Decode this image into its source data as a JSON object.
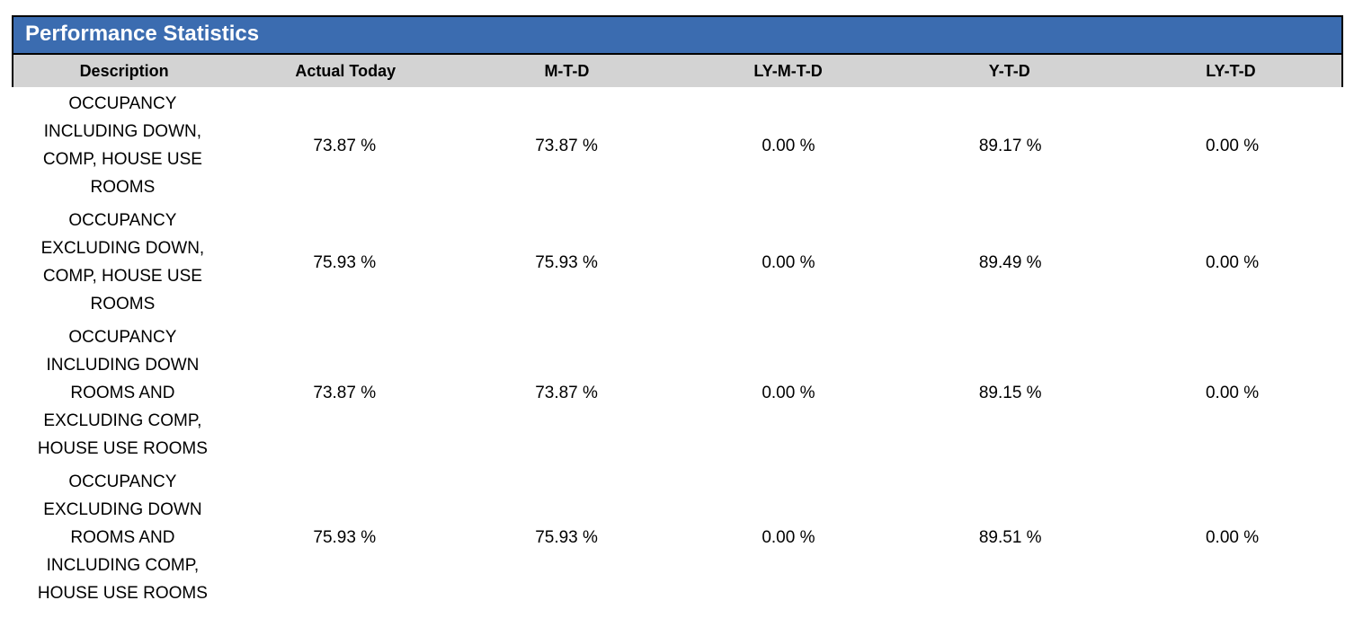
{
  "report": {
    "title": "Performance Statistics",
    "colors": {
      "title_bar_bg": "#3B6CB0",
      "title_text": "#FFFFFF",
      "column_header_bg": "#D3D3D3",
      "border": "#000000",
      "body_text": "#000000",
      "page_bg": "#FFFFFF"
    },
    "table": {
      "headers": [
        "Description",
        "Actual Today",
        "M-T-D",
        "LY-M-T-D",
        "Y-T-D",
        "LY-T-D"
      ],
      "rows": [
        {
          "description": "OCCUPANCY\nINCLUDING DOWN,\nCOMP, HOUSE USE\nROOMS",
          "actual_today": "73.87 %",
          "mtd": "73.87 %",
          "ly_mtd": "0.00 %",
          "ytd": "89.17 %",
          "ly_td": "0.00 %"
        },
        {
          "description": "OCCUPANCY\nEXCLUDING DOWN,\nCOMP, HOUSE USE\nROOMS",
          "actual_today": "75.93 %",
          "mtd": "75.93 %",
          "ly_mtd": "0.00 %",
          "ytd": "89.49 %",
          "ly_td": "0.00 %"
        },
        {
          "description": "OCCUPANCY\nINCLUDING DOWN\nROOMS AND\nEXCLUDING COMP,\nHOUSE USE ROOMS",
          "actual_today": "73.87 %",
          "mtd": "73.87 %",
          "ly_mtd": "0.00 %",
          "ytd": "89.15 %",
          "ly_td": "0.00 %"
        },
        {
          "description": "OCCUPANCY\nEXCLUDING DOWN\nROOMS AND\nINCLUDING COMP,\nHOUSE USE ROOMS",
          "actual_today": "75.93 %",
          "mtd": "75.93 %",
          "ly_mtd": "0.00 %",
          "ytd": "89.51 %",
          "ly_td": "0.00 %"
        }
      ]
    }
  }
}
